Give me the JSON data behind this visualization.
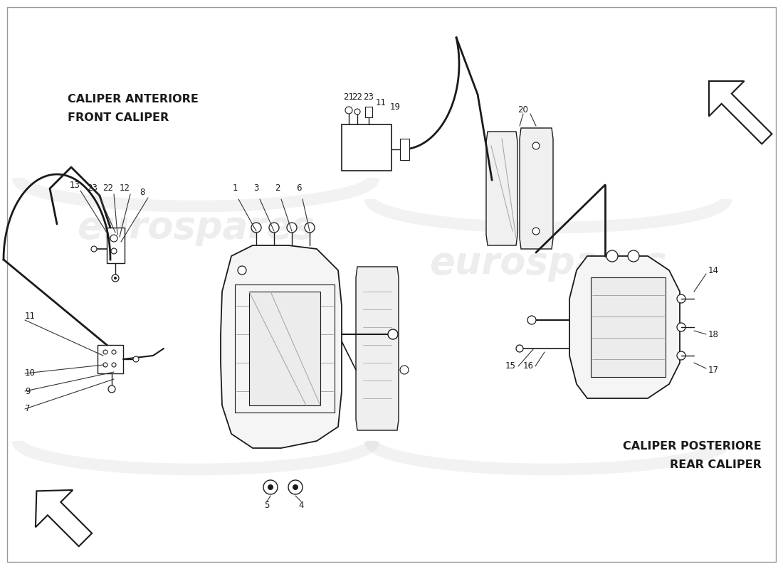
{
  "bg_color": "#ffffff",
  "line_color": "#1a1a1a",
  "light_line": "#555555",
  "wm_color": "#cccccc",
  "wm_alpha": 0.35,
  "title_front_it": "CALIPER ANTERIORE",
  "title_front_en": "FRONT CALIPER",
  "title_rear_it": "CALIPER POSTERIORE",
  "title_rear_en": "REAR CALIPER",
  "label_fs": 8.5,
  "title_fs": 11.5
}
